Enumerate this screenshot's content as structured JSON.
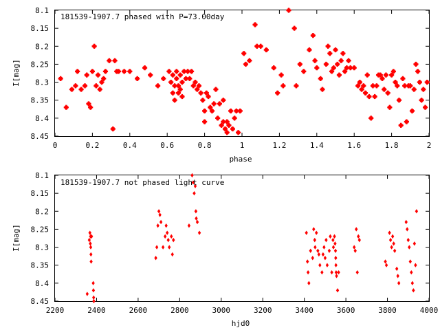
{
  "chart_data": [
    {
      "type": "scatter",
      "title": "181539-1907.7 phased with P=73.00day",
      "xlabel": "phase",
      "ylabel": "I[mag]",
      "xlim": [
        0,
        2
      ],
      "ylim": [
        8.45,
        8.1
      ],
      "y_inverted": true,
      "xticks": [
        "0",
        "0.2",
        "0.4",
        "0.6",
        "0.8",
        "1",
        "1.2",
        "1.4",
        "1.6",
        "1.8",
        "2"
      ],
      "yticks": [
        "8.1",
        "8.15",
        "8.2",
        "8.25",
        "8.3",
        "8.35",
        "8.4",
        "8.45"
      ],
      "marker_color": "#ff0000",
      "grid": false,
      "series": [
        {
          "marker": "cross",
          "points": [
            [
              0.03,
              8.29
            ],
            [
              0.06,
              8.37
            ],
            [
              0.09,
              8.32
            ],
            [
              0.11,
              8.31
            ],
            [
              0.12,
              8.27
            ],
            [
              0.14,
              8.32
            ],
            [
              0.16,
              8.31
            ],
            [
              0.17,
              8.28
            ],
            [
              0.18,
              8.36
            ],
            [
              0.19,
              8.37
            ],
            [
              0.2,
              8.27
            ],
            [
              0.21,
              8.2
            ],
            [
              0.22,
              8.31
            ],
            [
              0.23,
              8.28
            ],
            [
              0.24,
              8.32
            ],
            [
              0.25,
              8.3
            ],
            [
              0.26,
              8.29
            ],
            [
              0.27,
              8.27
            ],
            [
              0.29,
              8.24
            ],
            [
              0.31,
              8.43
            ],
            [
              0.32,
              8.24
            ],
            [
              0.33,
              8.27
            ],
            [
              0.34,
              8.27
            ],
            [
              0.37,
              8.27
            ],
            [
              0.4,
              8.27
            ],
            [
              0.44,
              8.29
            ],
            [
              0.48,
              8.26
            ],
            [
              0.51,
              8.28
            ],
            [
              0.55,
              8.31
            ],
            [
              0.58,
              8.29
            ],
            [
              0.61,
              8.27
            ],
            [
              0.62,
              8.3
            ],
            [
              0.63,
              8.28
            ],
            [
              0.63,
              8.33
            ],
            [
              0.64,
              8.31
            ],
            [
              0.64,
              8.35
            ],
            [
              0.65,
              8.27
            ],
            [
              0.65,
              8.29
            ],
            [
              0.66,
              8.31
            ],
            [
              0.66,
              8.33
            ],
            [
              0.67,
              8.28
            ],
            [
              0.67,
              8.32
            ],
            [
              0.68,
              8.3
            ],
            [
              0.68,
              8.34
            ],
            [
              0.69,
              8.27
            ],
            [
              0.7,
              8.29
            ],
            [
              0.71,
              8.27
            ],
            [
              0.72,
              8.29
            ],
            [
              0.73,
              8.27
            ],
            [
              0.74,
              8.31
            ],
            [
              0.75,
              8.3
            ],
            [
              0.76,
              8.32
            ],
            [
              0.77,
              8.31
            ],
            [
              0.78,
              8.33
            ],
            [
              0.79,
              8.35
            ],
            [
              0.8,
              8.38
            ],
            [
              0.8,
              8.41
            ],
            [
              0.81,
              8.33
            ],
            [
              0.82,
              8.34
            ],
            [
              0.83,
              8.37
            ],
            [
              0.84,
              8.38
            ],
            [
              0.85,
              8.36
            ],
            [
              0.86,
              8.32
            ],
            [
              0.87,
              8.4
            ],
            [
              0.88,
              8.36
            ],
            [
              0.89,
              8.42
            ],
            [
              0.9,
              8.35
            ],
            [
              0.9,
              8.41
            ],
            [
              0.91,
              8.43
            ],
            [
              0.92,
              8.41
            ],
            [
              0.92,
              8.44
            ],
            [
              0.93,
              8.42
            ],
            [
              0.94,
              8.38
            ],
            [
              0.95,
              8.43
            ],
            [
              0.96,
              8.4
            ],
            [
              0.97,
              8.38
            ],
            [
              0.98,
              8.44
            ],
            [
              0.99,
              8.38
            ],
            [
              1.01,
              8.22
            ],
            [
              1.02,
              8.25
            ],
            [
              1.04,
              8.24
            ],
            [
              1.07,
              8.14
            ],
            [
              1.08,
              8.2
            ],
            [
              1.1,
              8.2
            ],
            [
              1.13,
              8.21
            ],
            [
              1.17,
              8.26
            ],
            [
              1.19,
              8.33
            ],
            [
              1.21,
              8.28
            ],
            [
              1.22,
              8.31
            ],
            [
              1.25,
              8.1
            ],
            [
              1.28,
              8.15
            ],
            [
              1.29,
              8.31
            ],
            [
              1.31,
              8.25
            ],
            [
              1.33,
              8.27
            ],
            [
              1.36,
              8.21
            ],
            [
              1.38,
              8.17
            ],
            [
              1.39,
              8.24
            ],
            [
              1.4,
              8.26
            ],
            [
              1.42,
              8.29
            ],
            [
              1.43,
              8.32
            ],
            [
              1.45,
              8.25
            ],
            [
              1.46,
              8.2
            ],
            [
              1.47,
              8.22
            ],
            [
              1.48,
              8.27
            ],
            [
              1.49,
              8.26
            ],
            [
              1.5,
              8.21
            ],
            [
              1.51,
              8.25
            ],
            [
              1.52,
              8.28
            ],
            [
              1.53,
              8.24
            ],
            [
              1.54,
              8.22
            ],
            [
              1.55,
              8.27
            ],
            [
              1.56,
              8.26
            ],
            [
              1.57,
              8.24
            ],
            [
              1.58,
              8.26
            ],
            [
              1.6,
              8.26
            ],
            [
              1.62,
              8.31
            ],
            [
              1.63,
              8.3
            ],
            [
              1.64,
              8.32
            ],
            [
              1.65,
              8.31
            ],
            [
              1.66,
              8.33
            ],
            [
              1.67,
              8.28
            ],
            [
              1.68,
              8.34
            ],
            [
              1.69,
              8.4
            ],
            [
              1.7,
              8.31
            ],
            [
              1.71,
              8.34
            ],
            [
              1.72,
              8.31
            ],
            [
              1.73,
              8.28
            ],
            [
              1.74,
              8.28
            ],
            [
              1.75,
              8.29
            ],
            [
              1.76,
              8.32
            ],
            [
              1.77,
              8.28
            ],
            [
              1.78,
              8.33
            ],
            [
              1.79,
              8.37
            ],
            [
              1.8,
              8.28
            ],
            [
              1.81,
              8.27
            ],
            [
              1.82,
              8.3
            ],
            [
              1.83,
              8.31
            ],
            [
              1.84,
              8.35
            ],
            [
              1.85,
              8.42
            ],
            [
              1.86,
              8.29
            ],
            [
              1.87,
              8.31
            ],
            [
              1.88,
              8.41
            ],
            [
              1.89,
              8.31
            ],
            [
              1.9,
              8.31
            ],
            [
              1.91,
              8.38
            ],
            [
              1.92,
              8.32
            ],
            [
              1.93,
              8.25
            ],
            [
              1.94,
              8.27
            ],
            [
              1.95,
              8.3
            ],
            [
              1.96,
              8.35
            ],
            [
              1.97,
              8.32
            ],
            [
              1.98,
              8.37
            ],
            [
              1.99,
              8.3
            ]
          ]
        }
      ]
    },
    {
      "type": "scatter",
      "title": "181539-1907.7 not phased light curve",
      "xlabel": "hjd0",
      "ylabel": "I[mag]",
      "xlim": [
        2200,
        4000
      ],
      "ylim": [
        8.45,
        8.1
      ],
      "y_inverted": true,
      "xticks": [
        "2200",
        "2400",
        "2600",
        "2800",
        "3000",
        "3200",
        "3400",
        "3600",
        "3800",
        "4000"
      ],
      "yticks": [
        "8.1",
        "8.15",
        "8.2",
        "8.25",
        "8.3",
        "8.35",
        "8.4",
        "8.45"
      ],
      "marker_color": "#ff0000",
      "grid": false,
      "series": [
        {
          "marker": "diamond",
          "points": [
            [
              2355,
              8.43
            ],
            [
              2365,
              8.28
            ],
            [
              2368,
              8.26
            ],
            [
              2370,
              8.29
            ],
            [
              2371,
              8.27
            ],
            [
              2372,
              8.3
            ],
            [
              2373,
              8.32
            ],
            [
              2374,
              8.34
            ],
            [
              2376,
              8.27
            ],
            [
              2384,
              8.4
            ],
            [
              2385,
              8.42
            ],
            [
              2386,
              8.44
            ],
            [
              2387,
              8.45
            ],
            [
              2685,
              8.33
            ],
            [
              2690,
              8.3
            ],
            [
              2695,
              8.24
            ],
            [
              2700,
              8.2
            ],
            [
              2705,
              8.21
            ],
            [
              2710,
              8.23
            ],
            [
              2720,
              8.3
            ],
            [
              2730,
              8.27
            ],
            [
              2735,
              8.24
            ],
            [
              2740,
              8.26
            ],
            [
              2745,
              8.28
            ],
            [
              2750,
              8.3
            ],
            [
              2760,
              8.27
            ],
            [
              2765,
              8.32
            ],
            [
              2770,
              8.28
            ],
            [
              2845,
              8.24
            ],
            [
              2860,
              8.1
            ],
            [
              2865,
              8.12
            ],
            [
              2870,
              8.15
            ],
            [
              2875,
              8.13
            ],
            [
              2878,
              8.2
            ],
            [
              2880,
              8.22
            ],
            [
              2885,
              8.23
            ],
            [
              2895,
              8.26
            ],
            [
              3410,
              8.26
            ],
            [
              3415,
              8.34
            ],
            [
              3418,
              8.37
            ],
            [
              3422,
              8.4
            ],
            [
              3430,
              8.31
            ],
            [
              3440,
              8.33
            ],
            [
              3445,
              8.25
            ],
            [
              3450,
              8.28
            ],
            [
              3452,
              8.3
            ],
            [
              3458,
              8.26
            ],
            [
              3465,
              8.31
            ],
            [
              3470,
              8.32
            ],
            [
              3475,
              8.35
            ],
            [
              3485,
              8.37
            ],
            [
              3490,
              8.32
            ],
            [
              3495,
              8.3
            ],
            [
              3500,
              8.33
            ],
            [
              3505,
              8.28
            ],
            [
              3510,
              8.35
            ],
            [
              3520,
              8.31
            ],
            [
              3525,
              8.27
            ],
            [
              3532,
              8.37
            ],
            [
              3538,
              8.28
            ],
            [
              3540,
              8.3
            ],
            [
              3545,
              8.27
            ],
            [
              3548,
              8.29
            ],
            [
              3550,
              8.31
            ],
            [
              3551,
              8.33
            ],
            [
              3552,
              8.35
            ],
            [
              3553,
              8.37
            ],
            [
              3555,
              8.38
            ],
            [
              3560,
              8.42
            ],
            [
              3565,
              8.37
            ],
            [
              3640,
              8.3
            ],
            [
              3645,
              8.31
            ],
            [
              3650,
              8.25
            ],
            [
              3655,
              8.37
            ],
            [
              3660,
              8.27
            ],
            [
              3665,
              8.28
            ],
            [
              3790,
              8.34
            ],
            [
              3795,
              8.35
            ],
            [
              3810,
              8.26
            ],
            [
              3815,
              8.28
            ],
            [
              3820,
              8.3
            ],
            [
              3825,
              8.27
            ],
            [
              3830,
              8.29
            ],
            [
              3835,
              8.31
            ],
            [
              3845,
              8.36
            ],
            [
              3850,
              8.38
            ],
            [
              3855,
              8.4
            ],
            [
              3890,
              8.23
            ],
            [
              3895,
              8.25
            ],
            [
              3900,
              8.28
            ],
            [
              3905,
              8.3
            ],
            [
              3910,
              8.34
            ],
            [
              3915,
              8.37
            ],
            [
              3920,
              8.4
            ],
            [
              3925,
              8.42
            ],
            [
              3930,
              8.29
            ],
            [
              3935,
              8.35
            ],
            [
              3940,
              8.2
            ]
          ]
        }
      ]
    }
  ]
}
